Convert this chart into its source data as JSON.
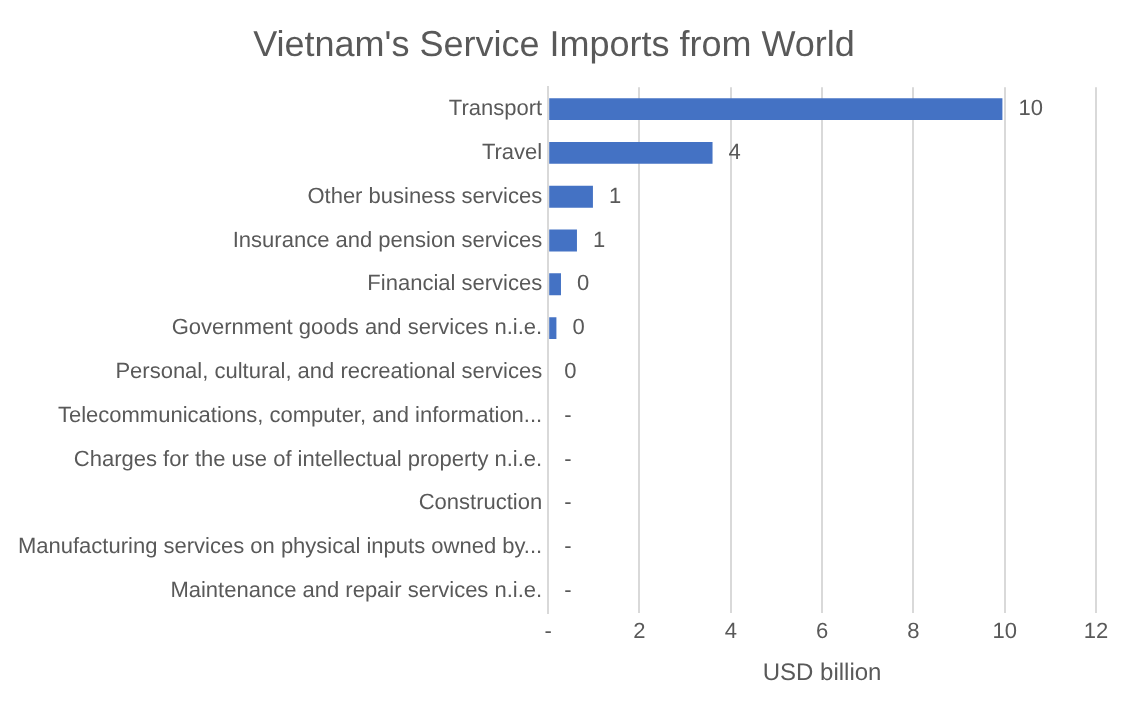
{
  "chart_data": {
    "type": "bar",
    "orientation": "horizontal",
    "title": "Vietnam's Service Imports from World",
    "xlabel": "USD billion",
    "categories": [
      "Transport",
      "Travel",
      "Other business services",
      "Insurance and pension services",
      "Financial services",
      "Government goods and services n.i.e.",
      "Personal, cultural, and recreational services",
      "Telecommunications, computer, and information...",
      "Charges for the use of intellectual property n.i.e.",
      "Construction",
      "Manufacturing services on physical inputs owned by...",
      "Maintenance and repair services n.i.e."
    ],
    "values": [
      9.95,
      3.6,
      0.98,
      0.63,
      0.28,
      0.18,
      0,
      0,
      0,
      0,
      0,
      0
    ],
    "value_labels": [
      "10",
      "4",
      "1",
      "1",
      "0",
      "0",
      "0",
      "-",
      "-",
      "-",
      "-",
      "-"
    ],
    "color": "#4472c4",
    "xlim": [
      0,
      12
    ],
    "xticks": [
      {
        "value": 0,
        "label": "-"
      },
      2,
      4,
      6,
      8,
      10,
      12
    ],
    "grid": "x",
    "legend": false
  }
}
